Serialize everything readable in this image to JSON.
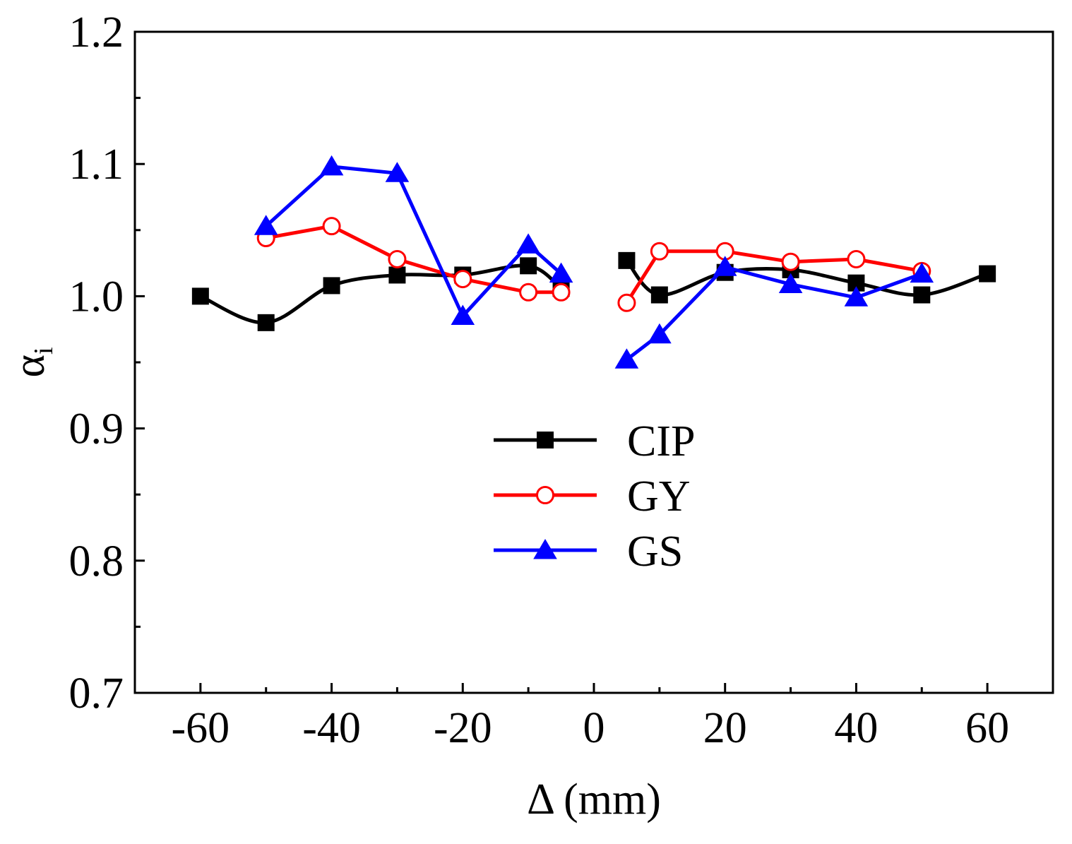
{
  "chart_data": {
    "type": "line",
    "title": "",
    "xlabel": "Δ (mm)",
    "ylabel": "α",
    "ylabel_subscript": "i",
    "xlim": [
      -70,
      70
    ],
    "ylim": [
      0.7,
      1.2
    ],
    "xticks": [
      -60,
      -40,
      -20,
      0,
      20,
      40,
      60
    ],
    "xtick_labels": [
      "-60",
      "-40",
      "-20",
      "0",
      "20",
      "40",
      "60"
    ],
    "yticks": [
      0.7,
      0.8,
      0.9,
      1.0,
      1.1,
      1.2
    ],
    "ytick_labels": [
      "0.7",
      "0.8",
      "0.9",
      "1.0",
      "1.1",
      "1.2"
    ],
    "grid": false,
    "legend_position": "center",
    "series": [
      {
        "name": "CIP",
        "color": "#000000",
        "marker": "filled-square",
        "smooth": true,
        "segments": [
          [
            [
              -60,
              1.0
            ],
            [
              -50,
              0.98
            ],
            [
              -40,
              1.008
            ],
            [
              -30,
              1.016
            ],
            [
              -20,
              1.016
            ],
            [
              -10,
              1.023
            ],
            [
              -5,
              1.006
            ]
          ],
          [
            [
              5,
              1.027
            ],
            [
              10,
              1.001
            ],
            [
              20,
              1.018
            ],
            [
              30,
              1.02
            ],
            [
              40,
              1.01
            ],
            [
              50,
              1.001
            ],
            [
              60,
              1.017
            ]
          ]
        ]
      },
      {
        "name": "GY",
        "color": "#ff0000",
        "marker": "open-circle",
        "smooth": false,
        "segments": [
          [
            [
              -50,
              1.044
            ],
            [
              -40,
              1.053
            ],
            [
              -30,
              1.028
            ],
            [
              -20,
              1.013
            ],
            [
              -10,
              1.003
            ],
            [
              -5,
              1.003
            ]
          ],
          [
            [
              5,
              0.995
            ],
            [
              10,
              1.034
            ],
            [
              20,
              1.034
            ],
            [
              30,
              1.026
            ],
            [
              40,
              1.028
            ],
            [
              50,
              1.019
            ]
          ]
        ]
      },
      {
        "name": "GS",
        "color": "#0000ff",
        "marker": "filled-triangle",
        "smooth": false,
        "segments": [
          [
            [
              -50,
              1.053
            ],
            [
              -40,
              1.098
            ],
            [
              -30,
              1.093
            ],
            [
              -20,
              0.985
            ],
            [
              -10,
              1.039
            ],
            [
              -5,
              1.017
            ]
          ],
          [
            [
              5,
              0.952
            ],
            [
              10,
              0.971
            ],
            [
              20,
              1.022
            ],
            [
              30,
              1.009
            ],
            [
              40,
              0.999
            ],
            [
              50,
              1.017
            ]
          ]
        ]
      }
    ]
  }
}
